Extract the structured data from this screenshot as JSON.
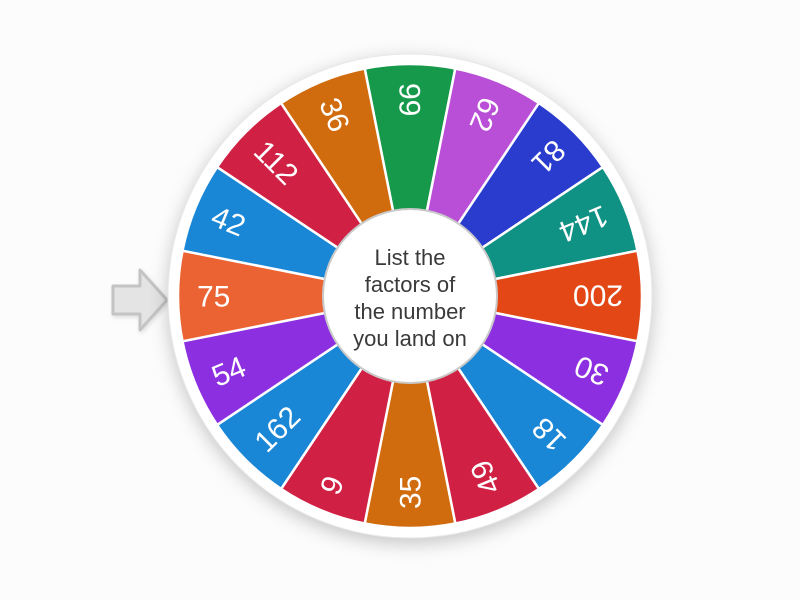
{
  "center_text": {
    "lines": [
      "List the",
      "factors of",
      "the number",
      "you land on"
    ],
    "full": "List the factors of the number you land on"
  },
  "wheel": {
    "segment_order": "clockwise-from-top",
    "segments": [
      {
        "label": "99",
        "color": "#16994a"
      },
      {
        "label": "62",
        "color": "#b94fd6"
      },
      {
        "label": "81",
        "color": "#2a3cce"
      },
      {
        "label": "144",
        "color": "#0f9183"
      },
      {
        "label": "200",
        "color": "#e24715"
      },
      {
        "label": "30",
        "color": "#8c2fe0"
      },
      {
        "label": "18",
        "color": "#1a87d6"
      },
      {
        "label": "49",
        "color": "#d02145"
      },
      {
        "label": "35",
        "color": "#d16c0e"
      },
      {
        "label": "9",
        "color": "#d02145"
      },
      {
        "label": "162",
        "color": "#1a87d6"
      },
      {
        "label": "54",
        "color": "#8c2fe0"
      },
      {
        "label": "75",
        "color": "#eb6233"
      },
      {
        "label": "42",
        "color": "#1a87d6"
      },
      {
        "label": "112",
        "color": "#d02145"
      },
      {
        "label": "36",
        "color": "#d16c0e"
      }
    ],
    "label_color": "#ffffff",
    "rim_color": "#ffffff",
    "rim_edge_color": "#e8e8e8",
    "separator_color": "#ffffff",
    "hub_fill": "#ffffff",
    "hub_border_color": "#c9c9c9"
  },
  "pointer": {
    "direction": "right",
    "fill": "#e4e4e4",
    "stroke": "#c4c4c4"
  },
  "background_color": "#fcfcfc",
  "text_color": "#3a3a3a"
}
